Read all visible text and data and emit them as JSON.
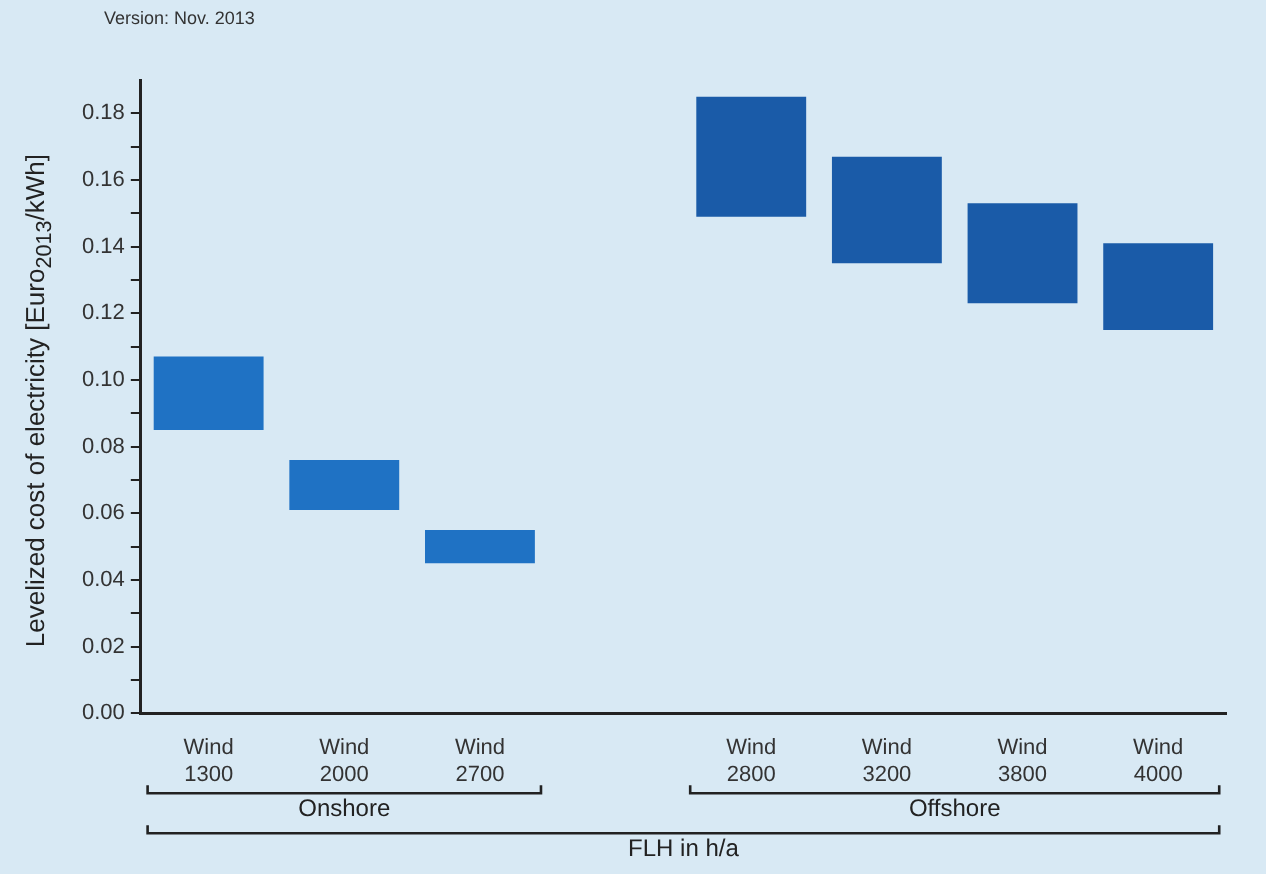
{
  "chart_data": {
    "type": "bar",
    "ylabel": "Levelized cost of electricity [Euro$_{2013}$/kWh]",
    "categories": [
      "Wind 1300",
      "Wind 2000",
      "Wind 2700",
      null,
      "Wind 2800",
      "Wind 3200",
      "Wind 3800",
      "Wind 4000"
    ],
    "base": [
      0.085,
      0.061,
      0.045,
      null,
      0.149,
      0.135,
      0.123,
      0.115
    ],
    "values": [
      0.022,
      0.015,
      0.01,
      null,
      0.036,
      0.032,
      0.03,
      0.026
    ],
    "colors": [
      "#1f72c4",
      "#1f72c4",
      "#1f72c4",
      "#1f72c4",
      "#1a5ba8",
      "#1a5ba8",
      "#1a5ba8",
      "#1a5ba8"
    ],
    "ylim": [
      0,
      0.19
    ],
    "yticks": [
      {
        "value": 0,
        "label": "0.00"
      },
      {
        "value": 0.01,
        "label": null
      },
      {
        "value": 0.02,
        "label": "0.02"
      },
      {
        "value": 0.03,
        "label": null
      },
      {
        "value": 0.04,
        "label": "0.04"
      },
      {
        "value": 0.05,
        "label": null
      },
      {
        "value": 0.06,
        "label": "0.06"
      },
      {
        "value": 0.07,
        "label": null
      },
      {
        "value": 0.08,
        "label": "0.08"
      },
      {
        "value": 0.09,
        "label": null
      },
      {
        "value": 0.1,
        "label": "0.10"
      },
      {
        "value": 0.11,
        "label": null
      },
      {
        "value": 0.12,
        "label": "0.12"
      },
      {
        "value": 0.13,
        "label": null
      },
      {
        "value": 0.14,
        "label": "0.14"
      },
      {
        "value": 0.15,
        "label": null
      },
      {
        "value": 0.16,
        "label": "0.16"
      },
      {
        "value": 0.17,
        "label": null
      },
      {
        "value": 0.18,
        "label": "0.18"
      }
    ],
    "grid": false,
    "legend": false,
    "annotations": [
      "Version: Nov. 2013",
      "Onshore",
      "Offshore",
      "FLH in h/a"
    ]
  }
}
